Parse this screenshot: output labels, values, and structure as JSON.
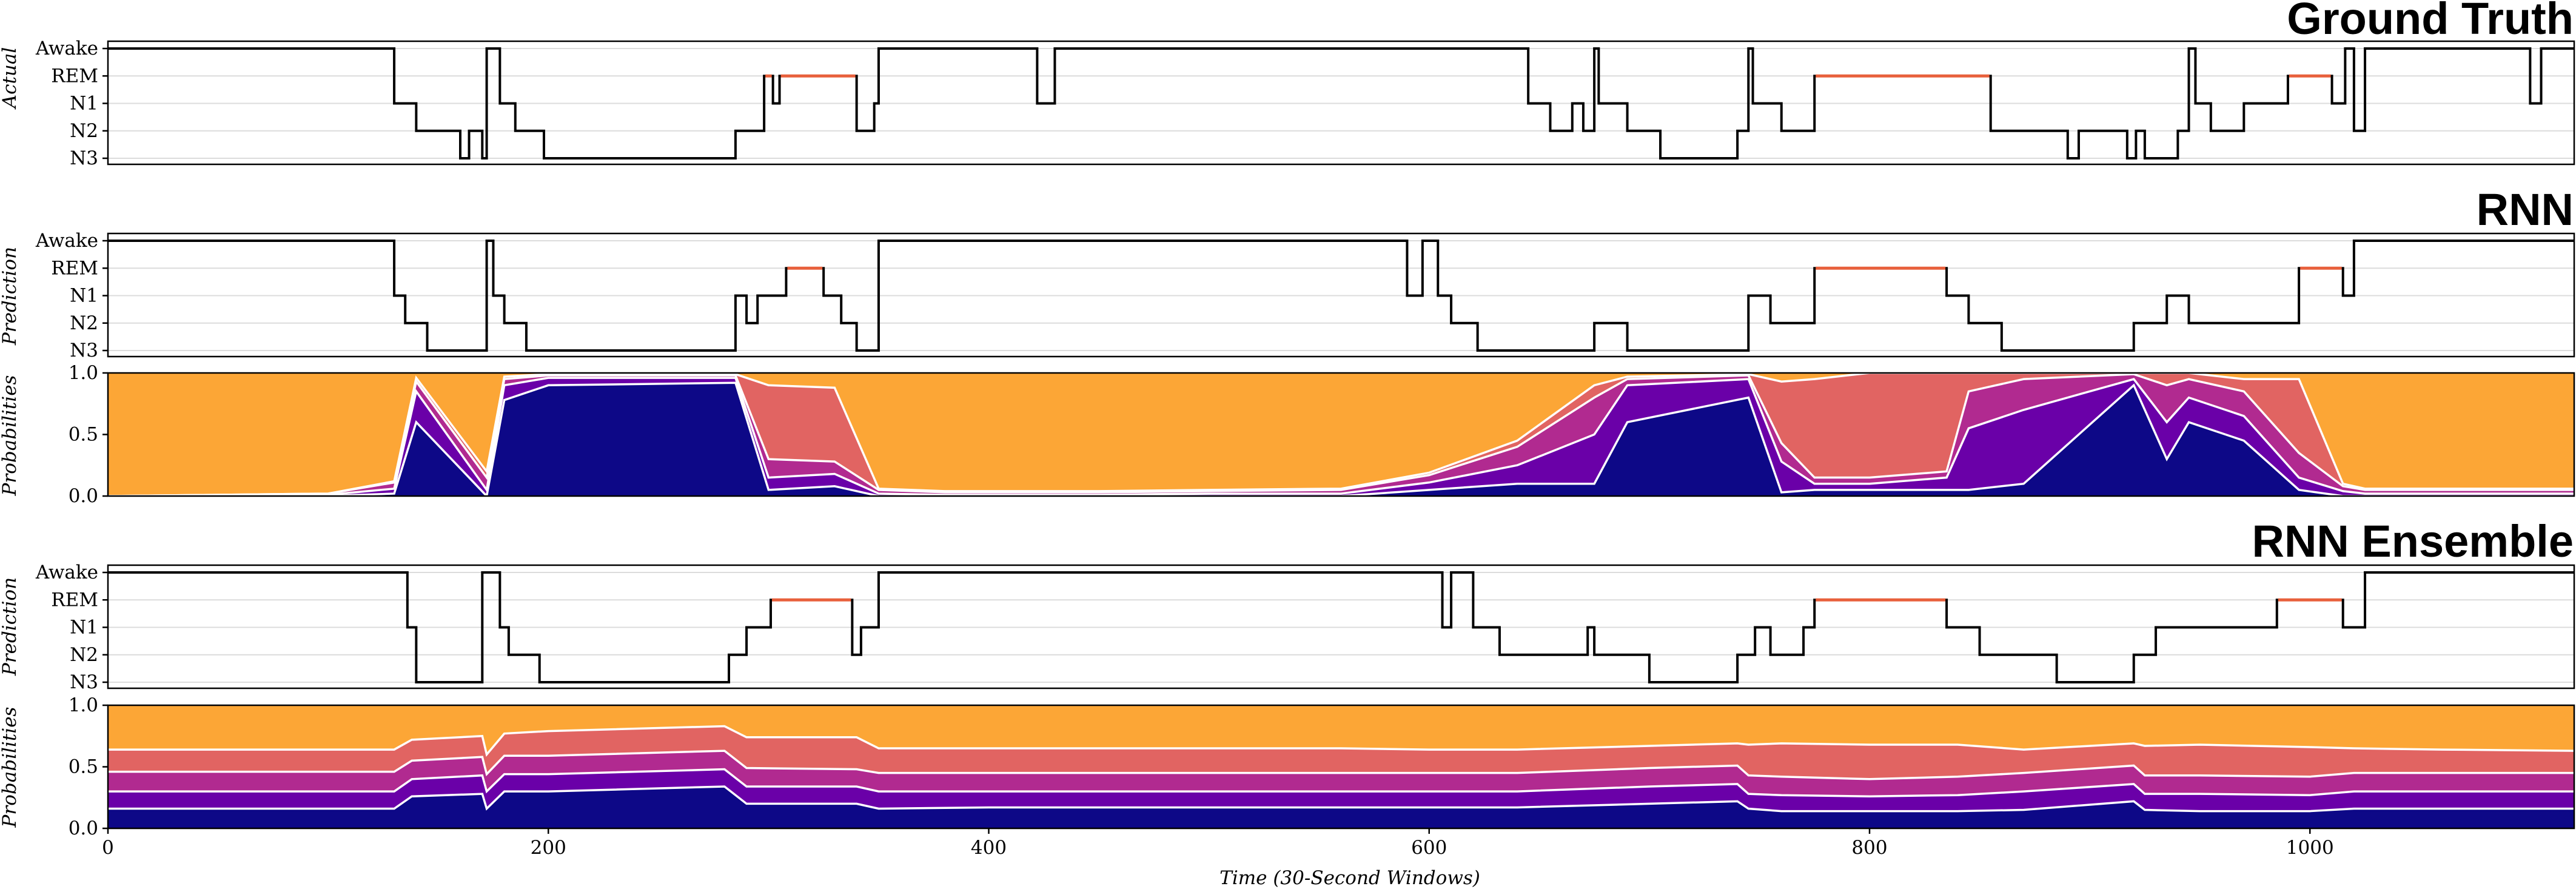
{
  "chart_data": {
    "type": "line",
    "x_axis": {
      "label": "Time (30-Second Windows)",
      "range": [
        0,
        1120
      ],
      "ticks": [
        0,
        200,
        400,
        600,
        800,
        1000
      ],
      "tick_labels": [
        "0",
        "200",
        "400",
        "600",
        "800",
        "1000"
      ]
    },
    "stage_labels": [
      "Awake",
      "REM",
      "N1",
      "N2",
      "N3"
    ],
    "prob_axis": {
      "range": [
        0.0,
        1.0
      ],
      "ticks": [
        0.0,
        0.5,
        1.0
      ],
      "tick_labels": [
        "0.0",
        "0.5",
        "1.0"
      ]
    },
    "colors": {
      "N3": "#0d0887",
      "N2": "#6a00a8",
      "N1": "#b12a90",
      "REM": "#e16462",
      "Awake": "#fca636",
      "rem_line": "#e8603c",
      "line": "#000000"
    },
    "panels": [
      {
        "title": "Ground Truth",
        "ylabel": "Actual",
        "hypnogram": [
          [
            0,
            "Awake"
          ],
          [
            130,
            "N1"
          ],
          [
            140,
            "N2"
          ],
          [
            160,
            "N3"
          ],
          [
            164,
            "N2"
          ],
          [
            170,
            "N3"
          ],
          [
            172,
            "Awake"
          ],
          [
            178,
            "N1"
          ],
          [
            185,
            "N2"
          ],
          [
            198,
            "N3"
          ],
          [
            285,
            "N2"
          ],
          [
            298,
            "REM"
          ],
          [
            302,
            "N1"
          ],
          [
            305,
            "REM"
          ],
          [
            340,
            "N2"
          ],
          [
            348,
            "N1"
          ],
          [
            350,
            "Awake"
          ],
          [
            422,
            "N1"
          ],
          [
            430,
            "Awake"
          ],
          [
            645,
            "N1"
          ],
          [
            655,
            "N2"
          ],
          [
            665,
            "N1"
          ],
          [
            670,
            "N2"
          ],
          [
            675,
            "Awake"
          ],
          [
            677,
            "N1"
          ],
          [
            690,
            "N2"
          ],
          [
            705,
            "N3"
          ],
          [
            740,
            "N2"
          ],
          [
            745,
            "Awake"
          ],
          [
            747,
            "N1"
          ],
          [
            760,
            "N2"
          ],
          [
            775,
            "REM"
          ],
          [
            855,
            "N2"
          ],
          [
            890,
            "N3"
          ],
          [
            895,
            "N2"
          ],
          [
            917,
            "N3"
          ],
          [
            921,
            "N2"
          ],
          [
            925,
            "N3"
          ],
          [
            940,
            "N2"
          ],
          [
            945,
            "Awake"
          ],
          [
            948,
            "N1"
          ],
          [
            955,
            "N2"
          ],
          [
            970,
            "N1"
          ],
          [
            990,
            "REM"
          ],
          [
            1010,
            "N1"
          ],
          [
            1016,
            "Awake"
          ],
          [
            1020,
            "N2"
          ],
          [
            1025,
            "Awake"
          ],
          [
            1100,
            "N1"
          ],
          [
            1105,
            "Awake"
          ],
          [
            1120,
            "Awake"
          ]
        ]
      },
      {
        "title": "RNN",
        "ylabel": "Prediction",
        "prob_ylabel": "Probabilities",
        "hypnogram": [
          [
            0,
            "Awake"
          ],
          [
            130,
            "N1"
          ],
          [
            135,
            "N2"
          ],
          [
            145,
            "N3"
          ],
          [
            172,
            "Awake"
          ],
          [
            175,
            "N1"
          ],
          [
            180,
            "N2"
          ],
          [
            190,
            "N3"
          ],
          [
            285,
            "N1"
          ],
          [
            290,
            "N2"
          ],
          [
            295,
            "N1"
          ],
          [
            308,
            "REM"
          ],
          [
            325,
            "N1"
          ],
          [
            333,
            "N2"
          ],
          [
            340,
            "N3"
          ],
          [
            350,
            "Awake"
          ],
          [
            590,
            "N1"
          ],
          [
            597,
            "Awake"
          ],
          [
            604,
            "N1"
          ],
          [
            610,
            "N2"
          ],
          [
            622,
            "N3"
          ],
          [
            675,
            "N2"
          ],
          [
            690,
            "N3"
          ],
          [
            745,
            "N1"
          ],
          [
            755,
            "N2"
          ],
          [
            770,
            "N2"
          ],
          [
            775,
            "REM"
          ],
          [
            835,
            "N1"
          ],
          [
            845,
            "N2"
          ],
          [
            860,
            "N3"
          ],
          [
            920,
            "N2"
          ],
          [
            935,
            "N1"
          ],
          [
            945,
            "N2"
          ],
          [
            995,
            "REM"
          ],
          [
            1015,
            "N1"
          ],
          [
            1020,
            "Awake"
          ],
          [
            1120,
            "Awake"
          ]
        ],
        "probabilities": {
          "x": [
            0,
            100,
            130,
            140,
            172,
            180,
            200,
            285,
            300,
            330,
            350,
            380,
            450,
            500,
            560,
            600,
            640,
            675,
            690,
            745,
            760,
            775,
            800,
            835,
            845,
            870,
            920,
            935,
            945,
            970,
            995,
            1015,
            1025,
            1120
          ],
          "N3": [
            0.0,
            0.0,
            0.02,
            0.6,
            0.0,
            0.78,
            0.9,
            0.92,
            0.05,
            0.08,
            0.0,
            0.0,
            0.0,
            0.0,
            0.0,
            0.05,
            0.1,
            0.1,
            0.6,
            0.8,
            0.03,
            0.05,
            0.05,
            0.05,
            0.05,
            0.1,
            0.9,
            0.3,
            0.6,
            0.45,
            0.05,
            0.0,
            0.0,
            0.0
          ],
          "N2": [
            0.0,
            0.01,
            0.04,
            0.25,
            0.05,
            0.12,
            0.06,
            0.04,
            0.1,
            0.1,
            0.02,
            0.01,
            0.01,
            0.02,
            0.02,
            0.06,
            0.15,
            0.4,
            0.3,
            0.15,
            0.25,
            0.05,
            0.05,
            0.1,
            0.5,
            0.6,
            0.05,
            0.3,
            0.2,
            0.2,
            0.1,
            0.04,
            0.02,
            0.02
          ],
          "N1": [
            0.0,
            0.01,
            0.05,
            0.08,
            0.1,
            0.05,
            0.02,
            0.02,
            0.15,
            0.1,
            0.03,
            0.02,
            0.02,
            0.02,
            0.03,
            0.06,
            0.15,
            0.3,
            0.05,
            0.03,
            0.15,
            0.05,
            0.05,
            0.05,
            0.3,
            0.25,
            0.04,
            0.3,
            0.15,
            0.2,
            0.2,
            0.04,
            0.03,
            0.03
          ],
          "REM": [
            0.0,
            0.0,
            0.01,
            0.03,
            0.05,
            0.02,
            0.01,
            0.01,
            0.6,
            0.6,
            0.01,
            0.01,
            0.01,
            0.01,
            0.01,
            0.02,
            0.05,
            0.1,
            0.02,
            0.01,
            0.5,
            0.8,
            0.85,
            0.8,
            0.15,
            0.05,
            0.01,
            0.1,
            0.05,
            0.1,
            0.6,
            0.02,
            0.01,
            0.01
          ]
        }
      },
      {
        "title": "RNN Ensemble",
        "ylabel": "Prediction",
        "prob_ylabel": "Probabilities",
        "hypnogram": [
          [
            0,
            "Awake"
          ],
          [
            136,
            "N1"
          ],
          [
            140,
            "N3"
          ],
          [
            170,
            "Awake"
          ],
          [
            178,
            "N1"
          ],
          [
            182,
            "N2"
          ],
          [
            196,
            "N3"
          ],
          [
            282,
            "N2"
          ],
          [
            290,
            "N1"
          ],
          [
            301,
            "REM"
          ],
          [
            338,
            "N2"
          ],
          [
            342,
            "N1"
          ],
          [
            350,
            "Awake"
          ],
          [
            606,
            "N1"
          ],
          [
            610,
            "Awake"
          ],
          [
            620,
            "N1"
          ],
          [
            632,
            "N2"
          ],
          [
            650,
            "N2"
          ],
          [
            672,
            "N1"
          ],
          [
            675,
            "N2"
          ],
          [
            700,
            "N3"
          ],
          [
            740,
            "N2"
          ],
          [
            748,
            "N1"
          ],
          [
            755,
            "N2"
          ],
          [
            770,
            "N1"
          ],
          [
            775,
            "REM"
          ],
          [
            835,
            "N1"
          ],
          [
            850,
            "N2"
          ],
          [
            885,
            "N3"
          ],
          [
            920,
            "N2"
          ],
          [
            930,
            "N1"
          ],
          [
            955,
            "N1"
          ],
          [
            985,
            "REM"
          ],
          [
            1015,
            "N1"
          ],
          [
            1025,
            "Awake"
          ],
          [
            1120,
            "Awake"
          ]
        ],
        "probabilities": {
          "x": [
            0,
            130,
            138,
            170,
            172,
            180,
            200,
            280,
            290,
            340,
            350,
            400,
            450,
            500,
            560,
            600,
            640,
            700,
            740,
            745,
            760,
            800,
            840,
            870,
            920,
            925,
            950,
            1000,
            1020,
            1060,
            1120
          ],
          "N3": [
            0.16,
            0.16,
            0.26,
            0.28,
            0.16,
            0.3,
            0.3,
            0.34,
            0.2,
            0.2,
            0.16,
            0.17,
            0.17,
            0.17,
            0.17,
            0.17,
            0.17,
            0.2,
            0.22,
            0.16,
            0.14,
            0.14,
            0.14,
            0.15,
            0.22,
            0.15,
            0.14,
            0.14,
            0.16,
            0.16,
            0.16
          ],
          "N2": [
            0.14,
            0.14,
            0.14,
            0.15,
            0.14,
            0.14,
            0.14,
            0.14,
            0.14,
            0.14,
            0.14,
            0.13,
            0.13,
            0.13,
            0.13,
            0.13,
            0.13,
            0.14,
            0.14,
            0.12,
            0.13,
            0.12,
            0.13,
            0.15,
            0.14,
            0.13,
            0.14,
            0.13,
            0.14,
            0.14,
            0.14
          ],
          "N1": [
            0.16,
            0.16,
            0.15,
            0.15,
            0.14,
            0.15,
            0.15,
            0.15,
            0.15,
            0.14,
            0.15,
            0.15,
            0.15,
            0.15,
            0.15,
            0.15,
            0.15,
            0.15,
            0.15,
            0.15,
            0.15,
            0.14,
            0.15,
            0.15,
            0.15,
            0.15,
            0.15,
            0.15,
            0.15,
            0.15,
            0.15
          ],
          "REM": [
            0.18,
            0.18,
            0.17,
            0.17,
            0.16,
            0.18,
            0.2,
            0.2,
            0.25,
            0.26,
            0.2,
            0.2,
            0.2,
            0.2,
            0.2,
            0.19,
            0.19,
            0.18,
            0.18,
            0.25,
            0.27,
            0.28,
            0.26,
            0.19,
            0.18,
            0.24,
            0.25,
            0.24,
            0.2,
            0.19,
            0.18
          ]
        }
      }
    ]
  }
}
